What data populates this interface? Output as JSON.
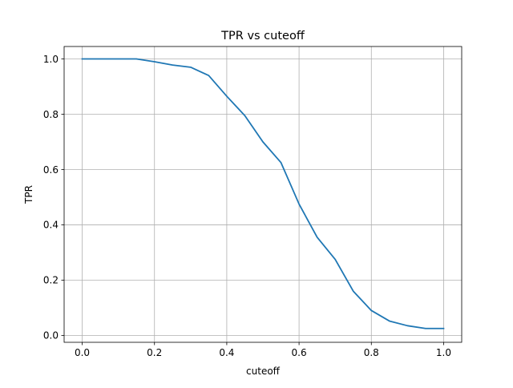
{
  "chart_data": {
    "type": "line",
    "title": "TPR vs cuteoff",
    "xlabel": "cuteoff",
    "ylabel": "TPR",
    "xlim": [
      -0.05,
      1.05
    ],
    "ylim": [
      -0.025,
      1.045
    ],
    "grid": true,
    "legend": "none",
    "line_color": "#1f77b4",
    "grid_color": "#b0b0b0",
    "xticks": [
      0.0,
      0.2,
      0.4,
      0.6,
      0.8,
      1.0
    ],
    "xtick_labels": [
      "0.0",
      "0.2",
      "0.4",
      "0.6",
      "0.8",
      "1.0"
    ],
    "yticks": [
      0.0,
      0.2,
      0.4,
      0.6,
      0.8,
      1.0
    ],
    "ytick_labels": [
      "0.0",
      "0.2",
      "0.4",
      "0.6",
      "0.8",
      "1.0"
    ],
    "series": [
      {
        "x": [
          0.0,
          0.05,
          0.1,
          0.15,
          0.2,
          0.25,
          0.3,
          0.35,
          0.4,
          0.45,
          0.5,
          0.55,
          0.6,
          0.65,
          0.7,
          0.75,
          0.8,
          0.85,
          0.9,
          0.95,
          1.0
        ],
        "y": [
          1.0,
          1.0,
          1.0,
          1.0,
          0.99,
          0.978,
          0.97,
          0.94,
          0.865,
          0.795,
          0.7,
          0.625,
          0.475,
          0.355,
          0.275,
          0.16,
          0.09,
          0.052,
          0.035,
          0.025,
          0.025
        ]
      }
    ]
  }
}
